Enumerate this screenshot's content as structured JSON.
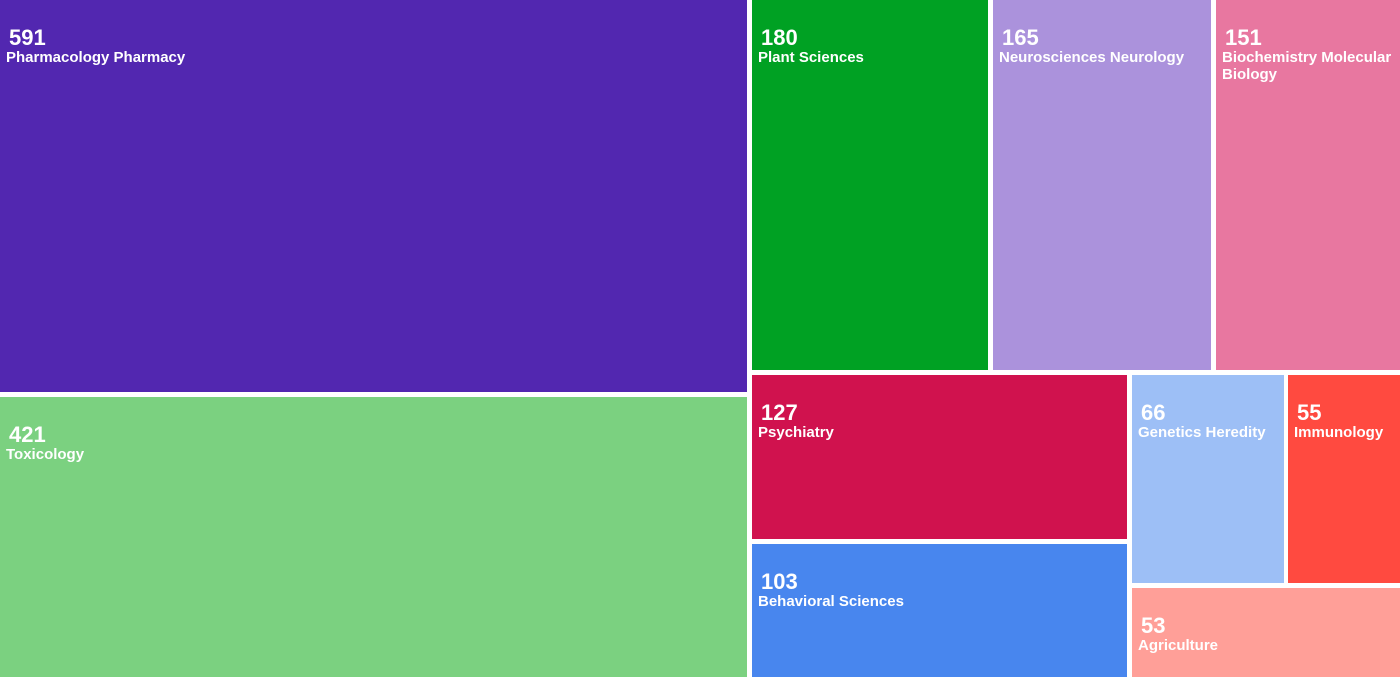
{
  "chart_data": {
    "type": "treemap",
    "title": "",
    "items": [
      {
        "label": "Pharmacology Pharmacy",
        "value": 591,
        "color": "#5227b0"
      },
      {
        "label": "Toxicology",
        "value": 421,
        "color": "#7bd180"
      },
      {
        "label": "Plant Sciences",
        "value": 180,
        "color": "#00a123"
      },
      {
        "label": "Neurosciences Neurology",
        "value": 165,
        "color": "#ab92dc"
      },
      {
        "label": "Biochemistry Molecular Biology",
        "value": 151,
        "color": "#e877a0"
      },
      {
        "label": "Psychiatry",
        "value": 127,
        "color": "#d0124e"
      },
      {
        "label": "Behavioral Sciences",
        "value": 103,
        "color": "#4886ee"
      },
      {
        "label": "Genetics Heredity",
        "value": 66,
        "color": "#9dbff6"
      },
      {
        "label": "Immunology",
        "value": 55,
        "color": "#ff4a40"
      },
      {
        "label": "Agriculture",
        "value": 53,
        "color": "#ff9f98"
      }
    ]
  }
}
